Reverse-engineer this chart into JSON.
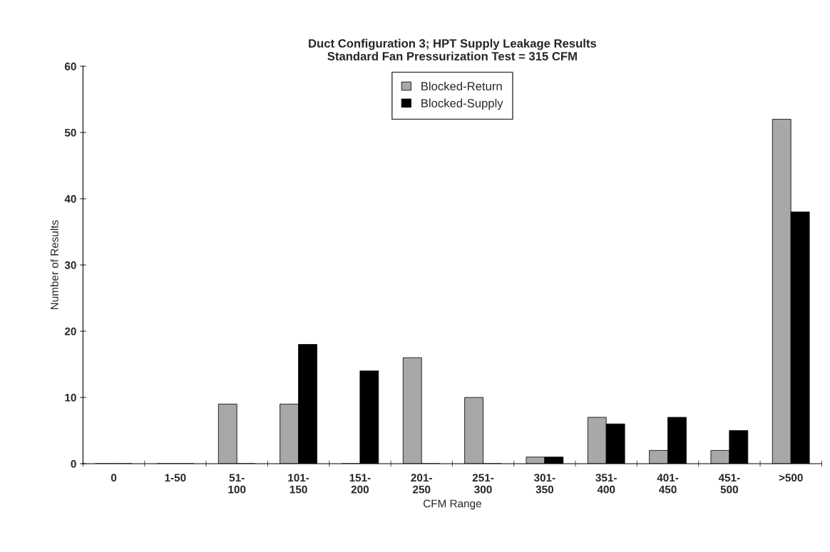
{
  "chart_data": {
    "type": "bar",
    "title": "Duct Configuration 3; HPT Supply Leakage Results\nStandard Fan Pressurization Test = 315 CFM",
    "xlabel": "CFM Range",
    "ylabel": "Number of Results",
    "categories": [
      "0",
      "1-50",
      "51-\n100",
      "101-\n150",
      "151-\n200",
      "201-\n250",
      "251-\n300",
      "301-\n350",
      "351-\n400",
      "401-\n450",
      "451-\n500",
      ">500"
    ],
    "series": [
      {
        "name": "Blocked-Return",
        "color": "#a8a8a8",
        "values": [
          0,
          0,
          9,
          9,
          0,
          16,
          10,
          1,
          7,
          2,
          2,
          52
        ]
      },
      {
        "name": "Blocked-Supply",
        "color": "#000000",
        "values": [
          0,
          0,
          0,
          18,
          14,
          0,
          0,
          1,
          6,
          7,
          5,
          38
        ]
      }
    ],
    "ylim": [
      0,
      60
    ],
    "yticks": [
      0,
      10,
      20,
      30,
      40,
      50,
      60
    ],
    "grid": false,
    "legend": "top"
  }
}
